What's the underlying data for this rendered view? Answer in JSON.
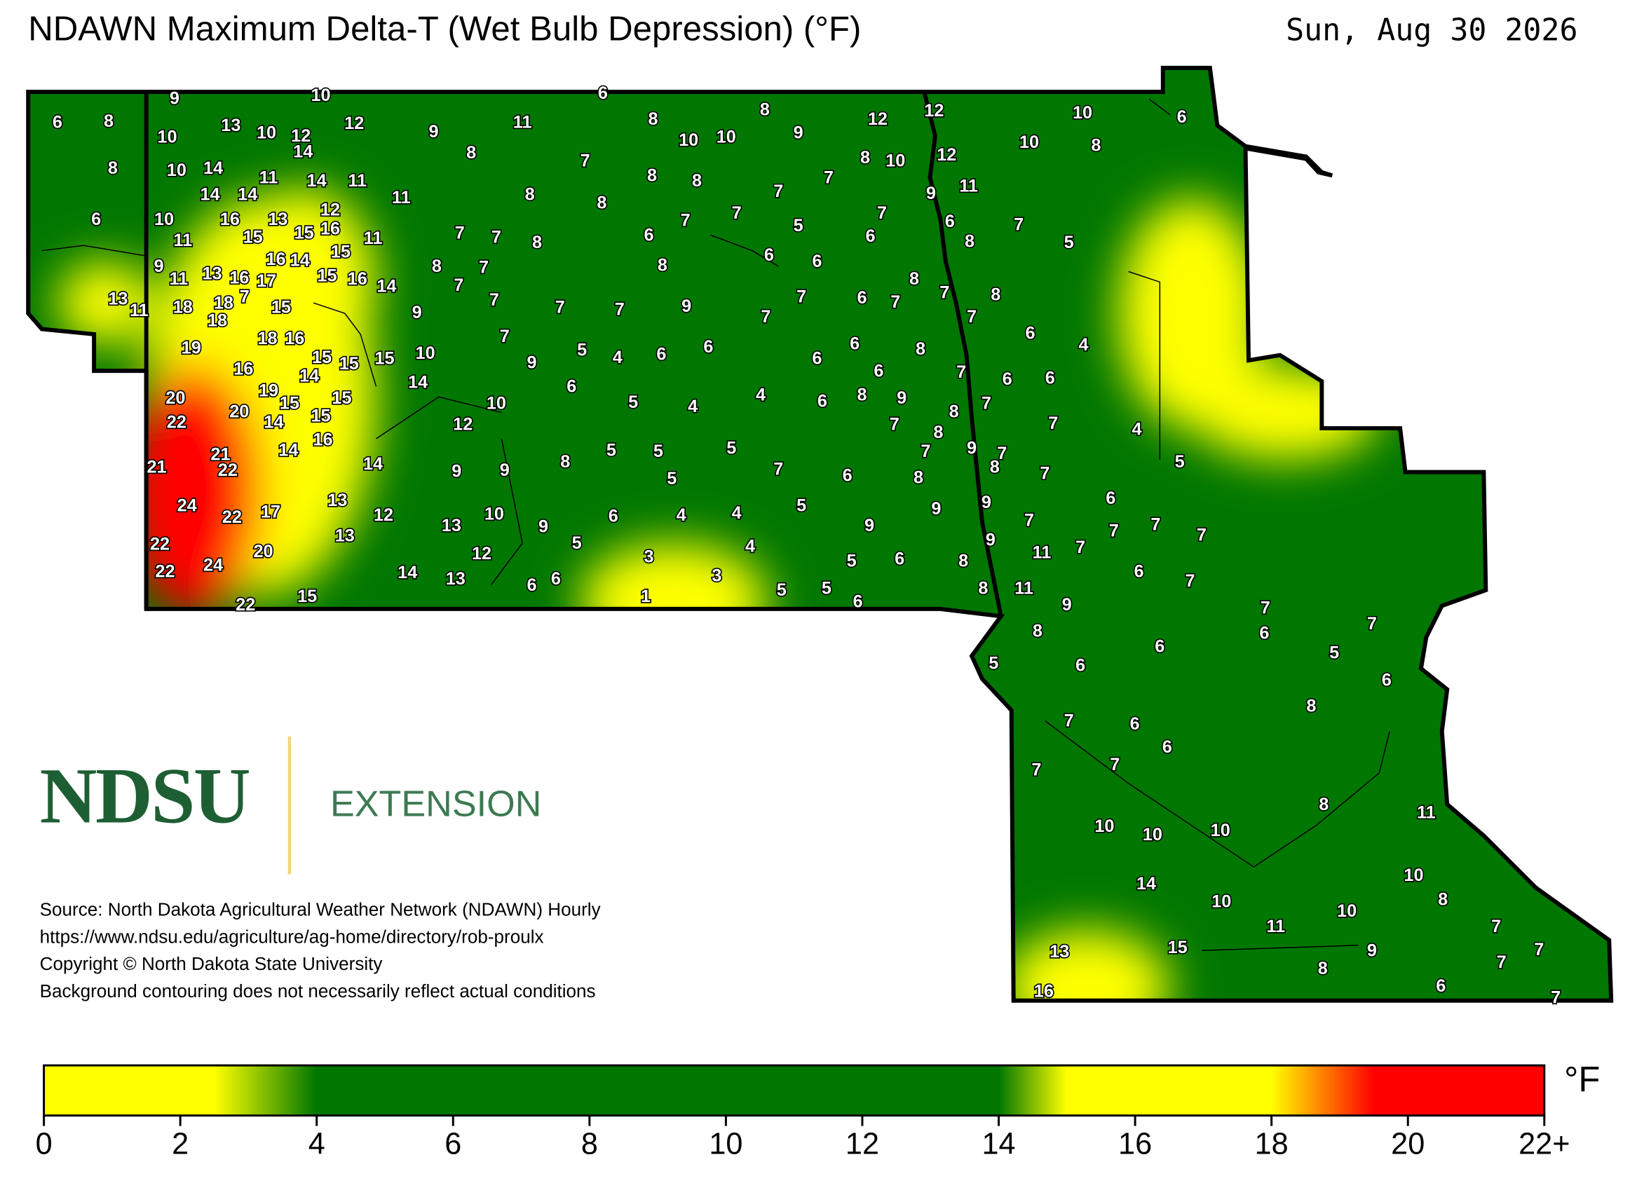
{
  "header": {
    "title": "NDAWN Maximum Delta-T (Wet Bulb Depression) (°F)",
    "date": "Sun, Aug 30 2026"
  },
  "map": {
    "stations": [
      9,
      10,
      6,
      6,
      8,
      13,
      10,
      10,
      12,
      14,
      12,
      9,
      11,
      8,
      8,
      10,
      10,
      9,
      12,
      12,
      10,
      6,
      10,
      8,
      8,
      10,
      14,
      8,
      7,
      8,
      8,
      8,
      10,
      12,
      11,
      14,
      11,
      14,
      14,
      11,
      8,
      8,
      7,
      7,
      9,
      11,
      6,
      10,
      16,
      13,
      12,
      15,
      16,
      15,
      11,
      11,
      7,
      7,
      8,
      6,
      7,
      7,
      5,
      7,
      6,
      6,
      7,
      8,
      5,
      9,
      11,
      13,
      16,
      16,
      14,
      17,
      15,
      15,
      16,
      14,
      8,
      7,
      7,
      8,
      6,
      6,
      8,
      13,
      11,
      18,
      18,
      7,
      18,
      15,
      9,
      7,
      7,
      7,
      9,
      7,
      7,
      6,
      7,
      7,
      8,
      7,
      19,
      18,
      16,
      7,
      6,
      4,
      16,
      14,
      15,
      15,
      15,
      10,
      9,
      5,
      4,
      6,
      6,
      6,
      6,
      6,
      8,
      7,
      6,
      6,
      14,
      20,
      19,
      15,
      15,
      6,
      5,
      4,
      4,
      6,
      8,
      9,
      7,
      22,
      20,
      14,
      15,
      10,
      12,
      7,
      8,
      8,
      7,
      4,
      16,
      14,
      21,
      22,
      21,
      14,
      9,
      9,
      8,
      5,
      5,
      5,
      5,
      7,
      6,
      7,
      9,
      7,
      8,
      8,
      7,
      5,
      24,
      22,
      17,
      13,
      12,
      13,
      10,
      9,
      6,
      4,
      4,
      5,
      9,
      9,
      9,
      7,
      6,
      7,
      7,
      7,
      22,
      13,
      20,
      12,
      5,
      3,
      4,
      9,
      11,
      7,
      22,
      24,
      14,
      13,
      6,
      6,
      3,
      5,
      6,
      8,
      6,
      7,
      15,
      22,
      1,
      5,
      5,
      6,
      8,
      11,
      9,
      7,
      8,
      6,
      7,
      6,
      5,
      6,
      5,
      6,
      8,
      7,
      6,
      6,
      7,
      7,
      8,
      11,
      10,
      10,
      10,
      10,
      14,
      10,
      8,
      10,
      11,
      7,
      13,
      15,
      9,
      7,
      7,
      8,
      6,
      16,
      7
    ]
  },
  "logo": {
    "name": "NDSU",
    "unit": "EXTENSION"
  },
  "source": [
    "Source: North Dakota Agricultural Weather Network (NDAWN) Hourly",
    "https://www.ndsu.edu/agriculture/ag-home/directory/rob-proulx",
    "Copyright © North Dakota State University",
    "Background contouring does not necessarily reflect actual conditions"
  ],
  "legend": {
    "unit": "°F",
    "range": [
      0,
      22
    ],
    "stops": [
      {
        "value": 0,
        "color": "#ffff00"
      },
      {
        "value": 2.5,
        "color": "#ffff00"
      },
      {
        "value": 4,
        "color": "#007700"
      },
      {
        "value": 14,
        "color": "#007700"
      },
      {
        "value": 15,
        "color": "#ffff00"
      },
      {
        "value": 18,
        "color": "#ffff00"
      },
      {
        "value": 19.5,
        "color": "#ff0000"
      },
      {
        "value": 22,
        "color": "#ff0000"
      }
    ],
    "ticks": [
      0,
      2,
      4,
      6,
      8,
      10,
      12,
      14,
      16,
      18,
      20,
      {
        "value": 22,
        "label": "22+"
      }
    ]
  }
}
